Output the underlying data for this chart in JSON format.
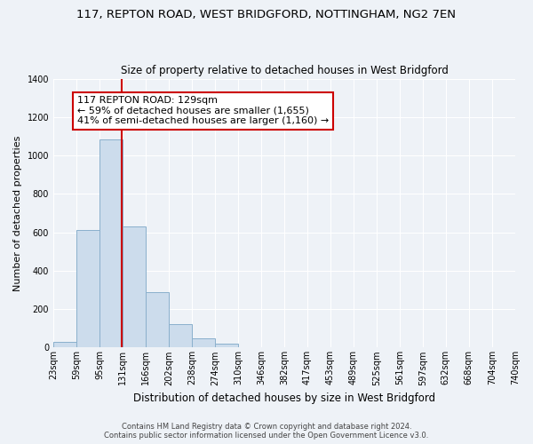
{
  "title_line1": "117, REPTON ROAD, WEST BRIDGFORD, NOTTINGHAM, NG2 7EN",
  "title_line2": "Size of property relative to detached houses in West Bridgford",
  "xlabel": "Distribution of detached houses by size in West Bridgford",
  "ylabel": "Number of detached properties",
  "bin_edges": [
    23,
    59,
    95,
    131,
    166,
    202,
    238,
    274,
    310,
    346,
    382,
    417,
    453,
    489,
    525,
    561,
    597,
    632,
    668,
    704,
    740
  ],
  "bar_heights": [
    30,
    610,
    1085,
    630,
    290,
    120,
    47,
    18,
    0,
    0,
    0,
    0,
    0,
    0,
    0,
    0,
    0,
    0,
    0,
    0
  ],
  "bar_color": "#ccdcec",
  "bar_edge_color": "#8ab0cc",
  "vline_x": 129,
  "vline_color": "#cc0000",
  "ylim": [
    0,
    1400
  ],
  "yticks": [
    0,
    200,
    400,
    600,
    800,
    1000,
    1200,
    1400
  ],
  "annotation_text": "117 REPTON ROAD: 129sqm\n← 59% of detached houses are smaller (1,655)\n41% of semi-detached houses are larger (1,160) →",
  "annotation_box_color": "#ffffff",
  "annotation_box_edge_color": "#cc0000",
  "footer_line1": "Contains HM Land Registry data © Crown copyright and database right 2024.",
  "footer_line2": "Contains public sector information licensed under the Open Government Licence v3.0.",
  "background_color": "#eef2f7",
  "plot_bg_color": "#eef2f7",
  "grid_color": "#ffffff",
  "title1_fontsize": 9.5,
  "title2_fontsize": 8.5,
  "ylabel_fontsize": 8,
  "xlabel_fontsize": 8.5,
  "tick_fontsize": 7,
  "annot_fontsize": 8,
  "footer_fontsize": 6
}
